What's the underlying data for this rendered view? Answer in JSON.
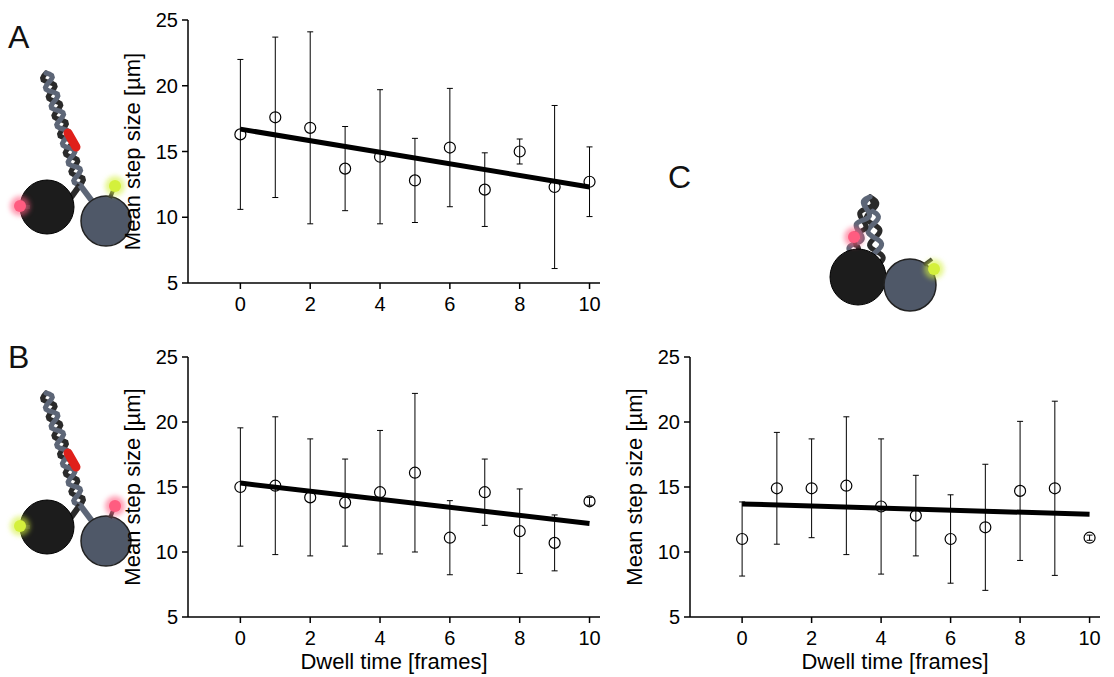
{
  "chart_data": [
    {
      "type": "scatter",
      "panel_label": "A",
      "y_label": "Mean step size [µm]",
      "x": [
        0,
        1,
        2,
        3,
        4,
        5,
        6,
        7,
        8,
        9,
        10
      ],
      "xlim": [
        -1.5,
        10.3
      ],
      "xticks": [
        0,
        2,
        4,
        6,
        8,
        10
      ],
      "ylim": [
        5,
        25
      ],
      "yticks": [
        5,
        10,
        15,
        20,
        25
      ],
      "grid": false,
      "series": [
        {
          "type": "scatter",
          "marker": "circle",
          "color": "#000000",
          "values": [
            16.3,
            17.6,
            16.8,
            13.7,
            14.6,
            12.8,
            15.3,
            12.1,
            15.0,
            12.3,
            12.7
          ],
          "error": [
            5.7,
            6.1,
            7.3,
            3.2,
            5.1,
            3.2,
            4.5,
            2.8,
            0.95,
            6.2,
            2.65
          ]
        },
        {
          "type": "line",
          "line_style": "solid",
          "color": "#000000",
          "x": [
            0,
            10
          ],
          "values": [
            16.7,
            12.3
          ]
        }
      ]
    },
    {
      "type": "scatter",
      "panel_label": "B",
      "y_label": "Mean step size [µm]",
      "x_label": "Dwell time [frames]",
      "x": [
        0,
        1,
        2,
        3,
        4,
        5,
        6,
        7,
        8,
        9,
        10
      ],
      "xlim": [
        -1.5,
        10.3
      ],
      "xticks": [
        0,
        2,
        4,
        6,
        8,
        10
      ],
      "ylim": [
        5,
        25
      ],
      "yticks": [
        5,
        10,
        15,
        20,
        25
      ],
      "grid": false,
      "series": [
        {
          "type": "scatter",
          "marker": "circle",
          "color": "#000000",
          "values": [
            15.0,
            15.1,
            14.2,
            13.8,
            14.6,
            16.1,
            11.1,
            14.6,
            11.6,
            10.7,
            13.9
          ],
          "error": [
            4.55,
            5.3,
            4.5,
            3.35,
            4.75,
            6.1,
            2.85,
            2.55,
            3.25,
            2.15,
            0.3
          ]
        },
        {
          "type": "line",
          "line_style": "solid",
          "color": "#000000",
          "x": [
            0,
            10
          ],
          "values": [
            15.3,
            12.2
          ]
        }
      ]
    },
    {
      "type": "scatter",
      "panel_label": "C",
      "y_label": "Mean step size [µm]",
      "x_label": "Dwell time [frames]",
      "x": [
        0,
        1,
        2,
        3,
        4,
        5,
        6,
        7,
        8,
        9,
        10
      ],
      "xlim": [
        -1.5,
        10.3
      ],
      "xticks": [
        0,
        2,
        4,
        6,
        8,
        10
      ],
      "ylim": [
        5,
        25
      ],
      "yticks": [
        5,
        10,
        15,
        20,
        25
      ],
      "grid": false,
      "series": [
        {
          "type": "scatter",
          "marker": "circle",
          "color": "#000000",
          "values": [
            11.0,
            14.9,
            14.9,
            15.1,
            13.5,
            12.8,
            11.0,
            11.9,
            14.7,
            14.9,
            11.1
          ],
          "error": [
            2.85,
            4.3,
            3.8,
            5.3,
            5.2,
            3.1,
            3.4,
            4.85,
            5.35,
            6.7,
            0.2
          ]
        },
        {
          "type": "line",
          "line_style": "solid",
          "color": "#000000",
          "x": [
            0,
            10
          ],
          "values": [
            13.7,
            12.9
          ]
        }
      ]
    }
  ]
}
